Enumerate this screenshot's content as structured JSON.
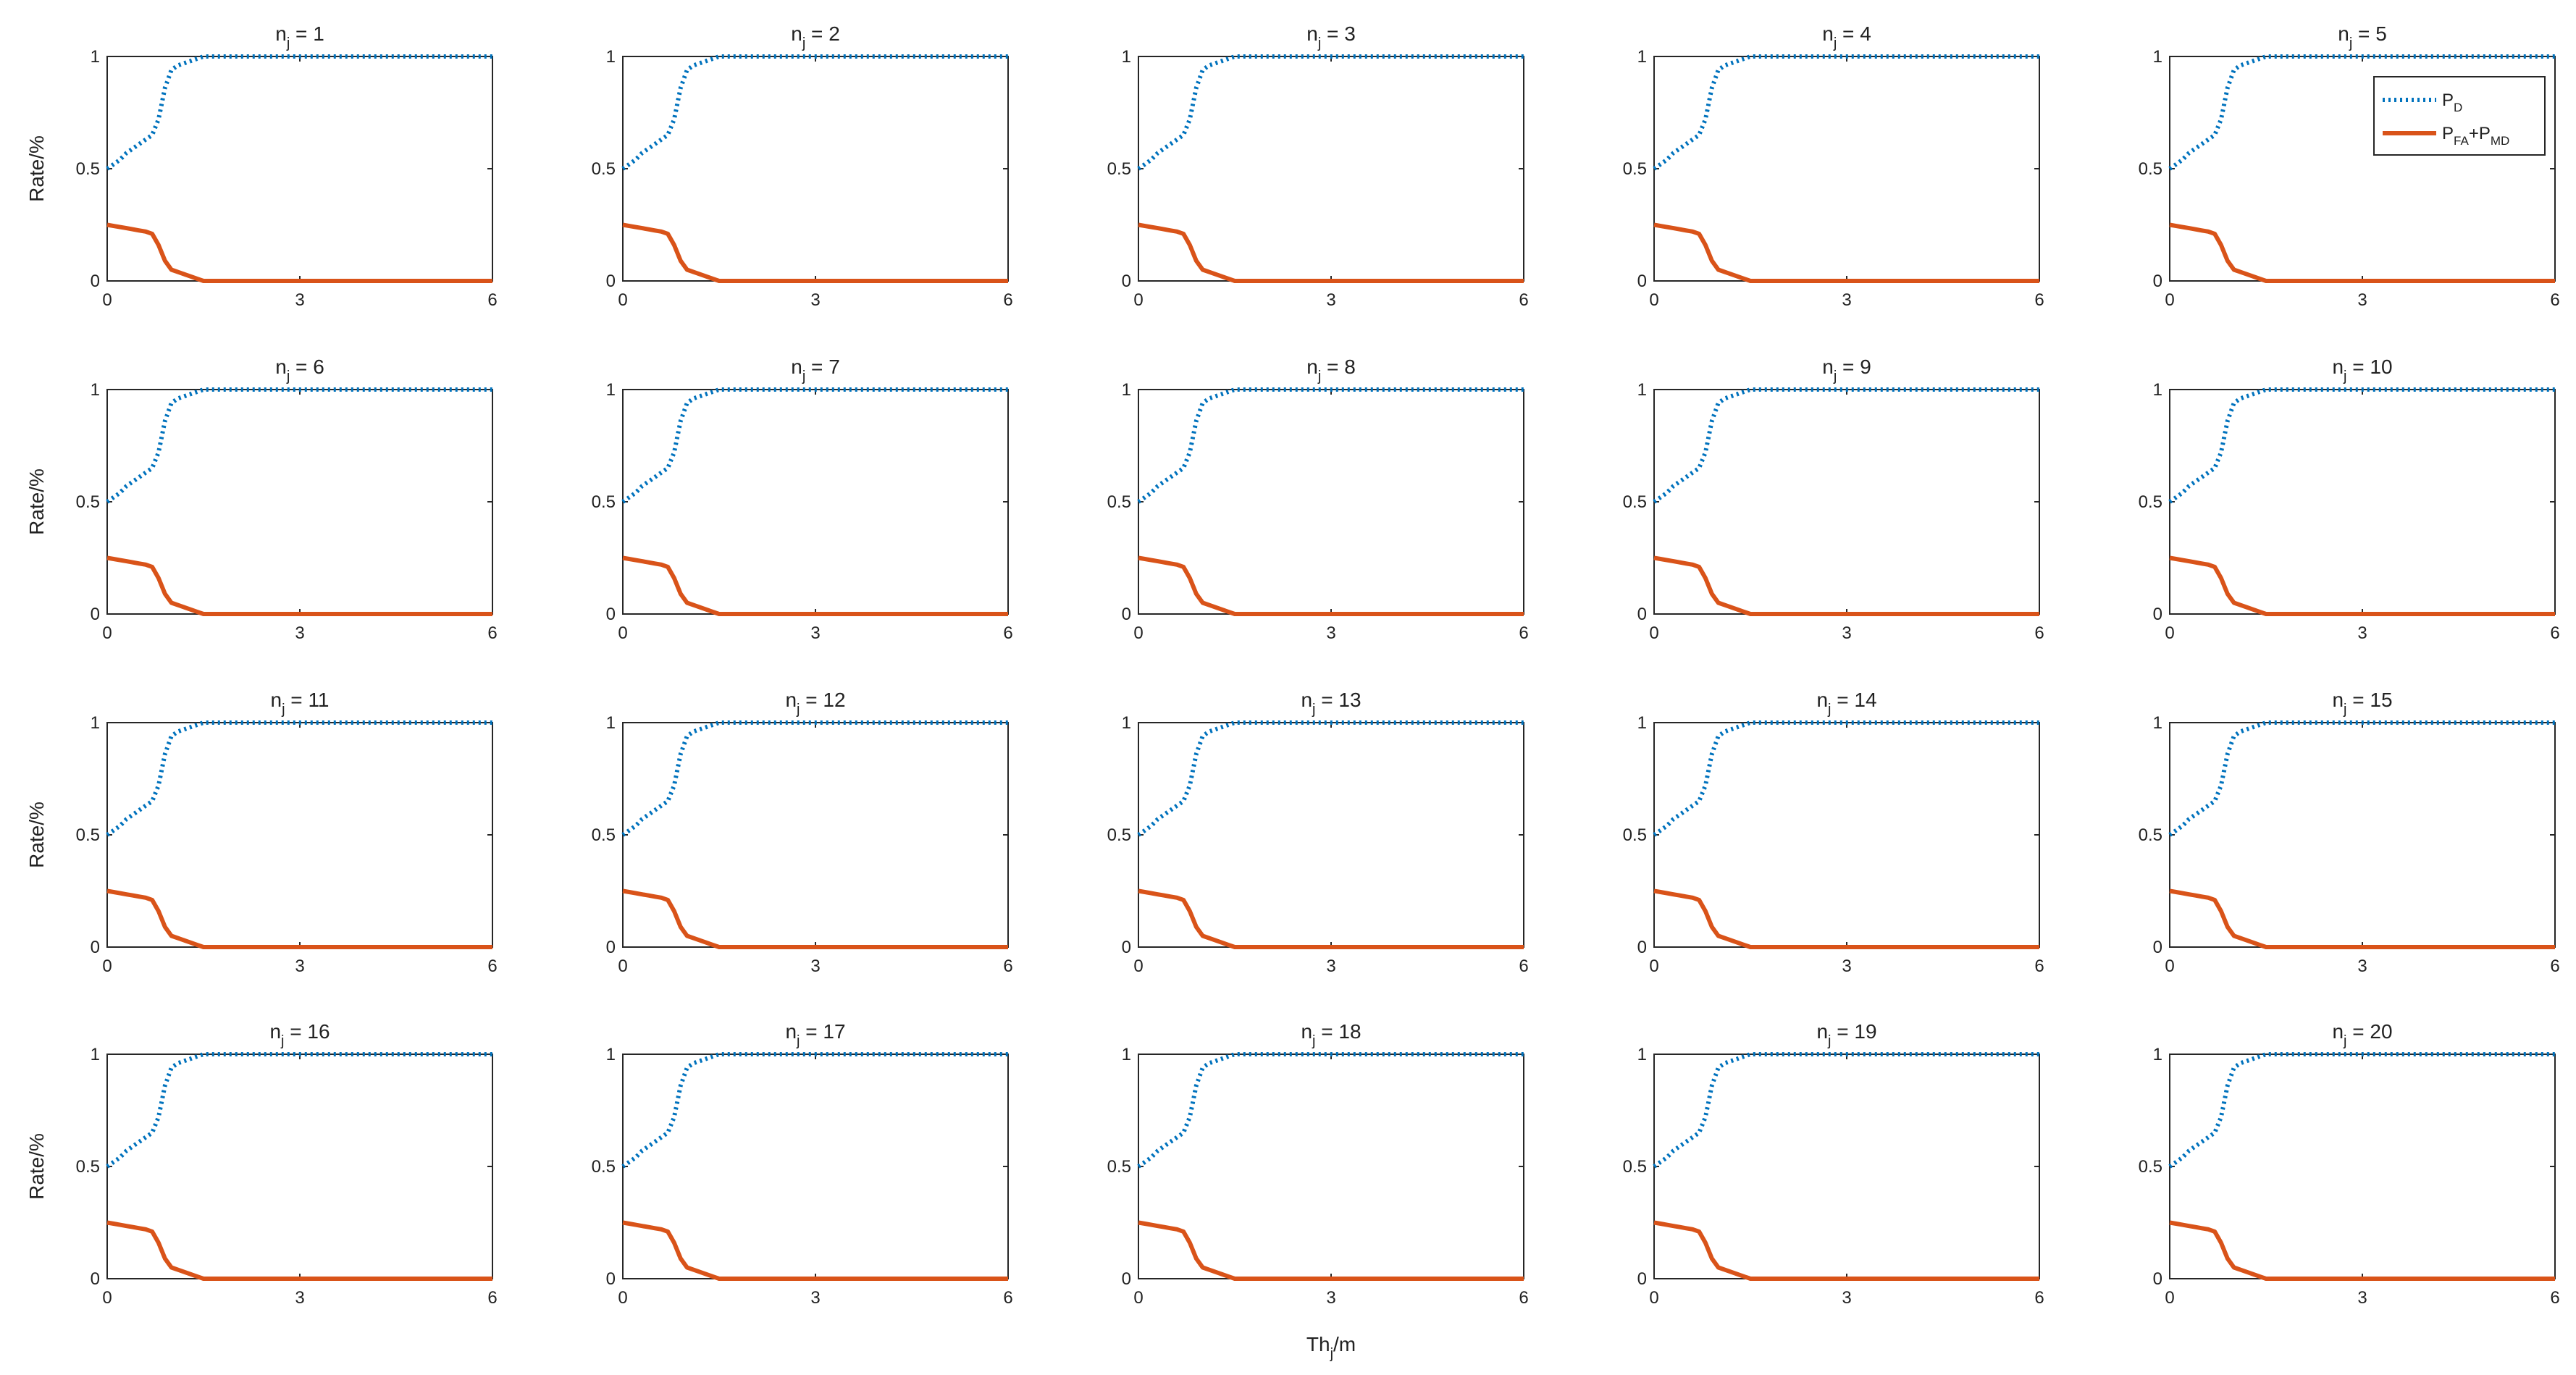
{
  "chart_data": {
    "type": "line",
    "layout": "5x4 grid of small multiples",
    "panel_title_prefix": "n",
    "panel_title_subscript": "j",
    "panel_title_separator": " = ",
    "panels": [
      1,
      2,
      3,
      4,
      5,
      6,
      7,
      8,
      9,
      10,
      11,
      12,
      13,
      14,
      15,
      16,
      17,
      18,
      19,
      20
    ],
    "ylabel": "Rate/%",
    "xlabel_main": "Th",
    "xlabel_sub": "j",
    "xlabel_suffix": "/m",
    "xlim": [
      0,
      6
    ],
    "ylim": [
      0,
      1
    ],
    "xticks": [
      "0",
      "3",
      "6"
    ],
    "yticks": [
      "0",
      "0.5",
      "1"
    ],
    "grid": false,
    "legend_position": "top-right of panel n_j = 5",
    "x": [
      0,
      0.1,
      0.2,
      0.3,
      0.4,
      0.5,
      0.6,
      0.7,
      0.8,
      0.9,
      1.0,
      1.1,
      1.2,
      1.3,
      1.4,
      1.5,
      1.6,
      1.8,
      2.0,
      2.5,
      3.0,
      3.5,
      4.0,
      4.5,
      5.0,
      5.5,
      6.0
    ],
    "series": [
      {
        "key": "pd",
        "legend_main": "P",
        "legend_sub": "D",
        "color": "#0072BD",
        "style": "dotted",
        "values": [
          0.5,
          0.52,
          0.54,
          0.57,
          0.59,
          0.61,
          0.63,
          0.65,
          0.72,
          0.86,
          0.94,
          0.96,
          0.97,
          0.98,
          0.99,
          1.0,
          1.0,
          1.0,
          1.0,
          1.0,
          1.0,
          1.0,
          1.0,
          1.0,
          1.0,
          1.0,
          1.0
        ]
      },
      {
        "key": "pfa_pmd",
        "legend_main_1": "P",
        "legend_sub_1": "FA",
        "legend_plus": "+",
        "legend_main_2": "P",
        "legend_sub_2": "MD",
        "color": "#D95319",
        "style": "solid",
        "values": [
          0.25,
          0.245,
          0.24,
          0.235,
          0.23,
          0.225,
          0.22,
          0.21,
          0.16,
          0.09,
          0.05,
          0.04,
          0.03,
          0.02,
          0.01,
          0.0,
          0.0,
          0.0,
          0.0,
          0.0,
          0.0,
          0.0,
          0.0,
          0.0,
          0.0,
          0.0,
          0.0
        ]
      }
    ]
  }
}
